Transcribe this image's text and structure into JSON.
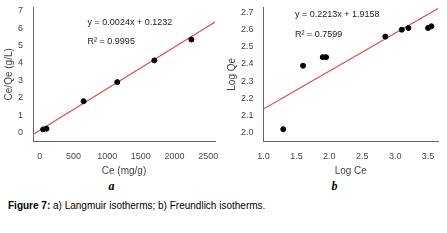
{
  "chart_data": [
    {
      "type": "scatter",
      "title": "a",
      "x_label": "Ce (mg/g)",
      "y_label": "Ce/Qe (g/L)",
      "annotations": [
        "y = 0.0024x + 0.1232",
        "R² = 0.9995"
      ],
      "series": [
        {
          "type": "line",
          "color": "#d9534f",
          "x": [
            -100,
            2600
          ],
          "values": [
            -0.1168,
            6.3632
          ]
        },
        {
          "type": "scatter",
          "color": "black",
          "x": [
            50,
            100,
            650,
            1150,
            1700,
            2250
          ],
          "values": [
            0.18,
            0.22,
            1.8,
            2.9,
            4.15,
            5.35
          ]
        }
      ],
      "xlim": [
        -100,
        2600
      ],
      "ylim": [
        -0.5,
        7.2
      ],
      "xticks": [
        0,
        500,
        1000,
        1500,
        2000,
        2500
      ],
      "yticks": [
        0,
        1,
        2,
        3,
        4,
        5,
        6,
        7
      ],
      "grid": false
    },
    {
      "type": "scatter",
      "title": "b",
      "x_label": "Log Ce",
      "y_label": "Log Qe",
      "annotations": [
        "y = 0.2213x + 1.9158",
        "R² = 0.7599"
      ],
      "series": [
        {
          "type": "line",
          "color": "#d9534f",
          "x": [
            1.0,
            3.65
          ],
          "values": [
            2.1371,
            2.723545
          ]
        },
        {
          "type": "scatter",
          "color": "black",
          "x": [
            1.3,
            1.6,
            1.9,
            1.95,
            2.85,
            3.1,
            3.2,
            3.5,
            3.55
          ],
          "values": [
            2.02,
            2.39,
            2.44,
            2.44,
            2.56,
            2.6,
            2.61,
            2.61,
            2.62
          ]
        }
      ],
      "xlim": [
        1.0,
        3.65
      ],
      "ylim": [
        1.95,
        2.73
      ],
      "xticks": [
        {
          "value": 1,
          "label": "1.0"
        },
        {
          "value": 1.5,
          "label": "1.5"
        },
        {
          "value": 2,
          "label": "2.0"
        },
        {
          "value": 2.5,
          "label": "2.5"
        },
        {
          "value": 3,
          "label": "3.0"
        },
        {
          "value": 3.5,
          "label": "3.5"
        }
      ],
      "yticks": [
        {
          "value": 2,
          "label": "2.0"
        },
        {
          "value": 2.1,
          "label": "2.1"
        },
        {
          "value": 2.2,
          "label": "2.2"
        },
        {
          "value": 2.3,
          "label": "2.3"
        },
        {
          "value": 2.4,
          "label": "2.4"
        },
        {
          "value": 2.5,
          "label": "2.5"
        },
        {
          "value": 2.6,
          "label": "2.6"
        },
        {
          "value": 2.7,
          "label": "2.7"
        }
      ],
      "grid": false
    }
  ],
  "caption": [
    "Figure 7:",
    "a) Langmuir isotherms; b) Freundlich isotherms."
  ]
}
